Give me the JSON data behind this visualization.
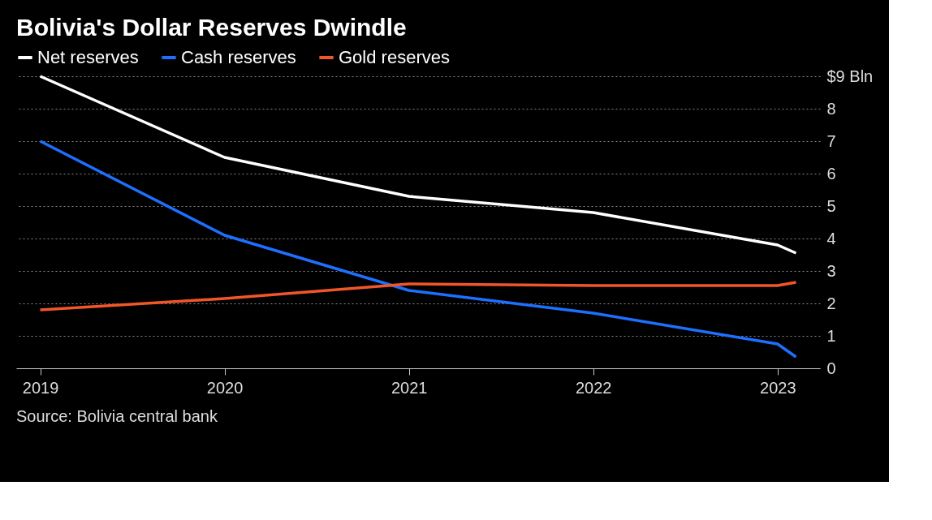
{
  "chart_data": {
    "type": "line",
    "title": "Bolivia's Dollar Reserves Dwindle",
    "x": [
      2019,
      2020,
      2021,
      2022,
      2023,
      2023.1
    ],
    "series": [
      {
        "name": "Net reserves",
        "color": "#ffffff",
        "values": [
          9.0,
          6.5,
          5.3,
          4.8,
          3.8,
          3.55
        ]
      },
      {
        "name": "Cash reserves",
        "color": "#1f6fff",
        "values": [
          7.0,
          4.1,
          2.4,
          1.7,
          0.75,
          0.35
        ]
      },
      {
        "name": "Gold reserves",
        "color": "#f0562a",
        "values": [
          1.8,
          2.15,
          2.6,
          2.55,
          2.55,
          2.65
        ]
      }
    ],
    "xlim": [
      2018.87,
      2023.23
    ],
    "xticks": [
      2019,
      2020,
      2021,
      2022,
      2023
    ],
    "ylim": [
      0,
      9
    ],
    "yticks": [
      0,
      1,
      2,
      3,
      4,
      5,
      6,
      7,
      8,
      {
        "value": 9,
        "label": "$9 Bln"
      }
    ],
    "grid": "y",
    "legend": "top left",
    "marker": "none",
    "line_style": "solid",
    "annotations": [
      "Source: Bolivia central bank"
    ]
  }
}
